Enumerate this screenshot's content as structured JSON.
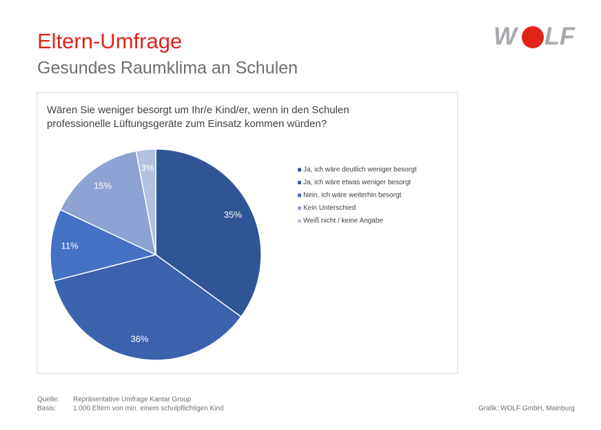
{
  "header": {
    "title": "Eltern-Umfrage",
    "subtitle": "Gesundes Raumklima an Schulen",
    "logo": {
      "left": "W",
      "right": "LF"
    }
  },
  "chart_data": {
    "type": "pie",
    "title": [
      "Wären Sie weniger besorgt um Ihr/e Kind/er, wenn in den Schulen",
      "professionelle Lüftungsgeräte zum Einsatz kommen würden?"
    ],
    "categories": [
      "Ja, ich wäre deutlich weniger besorgt",
      "Ja, ich wäre etwas weniger besorgt",
      "Nein, ich wäre weiterhin besorgt",
      "Kein Unterschied",
      "Weiß nicht / keine Angabe"
    ],
    "values": [
      35,
      36,
      11,
      15,
      3
    ],
    "value_labels": [
      "35%",
      "36%",
      "11%",
      "15%",
      "3%"
    ],
    "colors": [
      "#2f5597",
      "#3b63ad",
      "#4472c4",
      "#8fa2d4",
      "#b4c1e3"
    ],
    "legend": "right"
  },
  "footer": {
    "source_label": "Quelle:",
    "source": "Repräsentative Umfrage Kantar Group",
    "basis_label": "Basis:",
    "basis": "1.000 Eltern von min. einem schulpflichtigen Kind",
    "credit": "Grafik: WOLF GmbH, Mainburg"
  }
}
